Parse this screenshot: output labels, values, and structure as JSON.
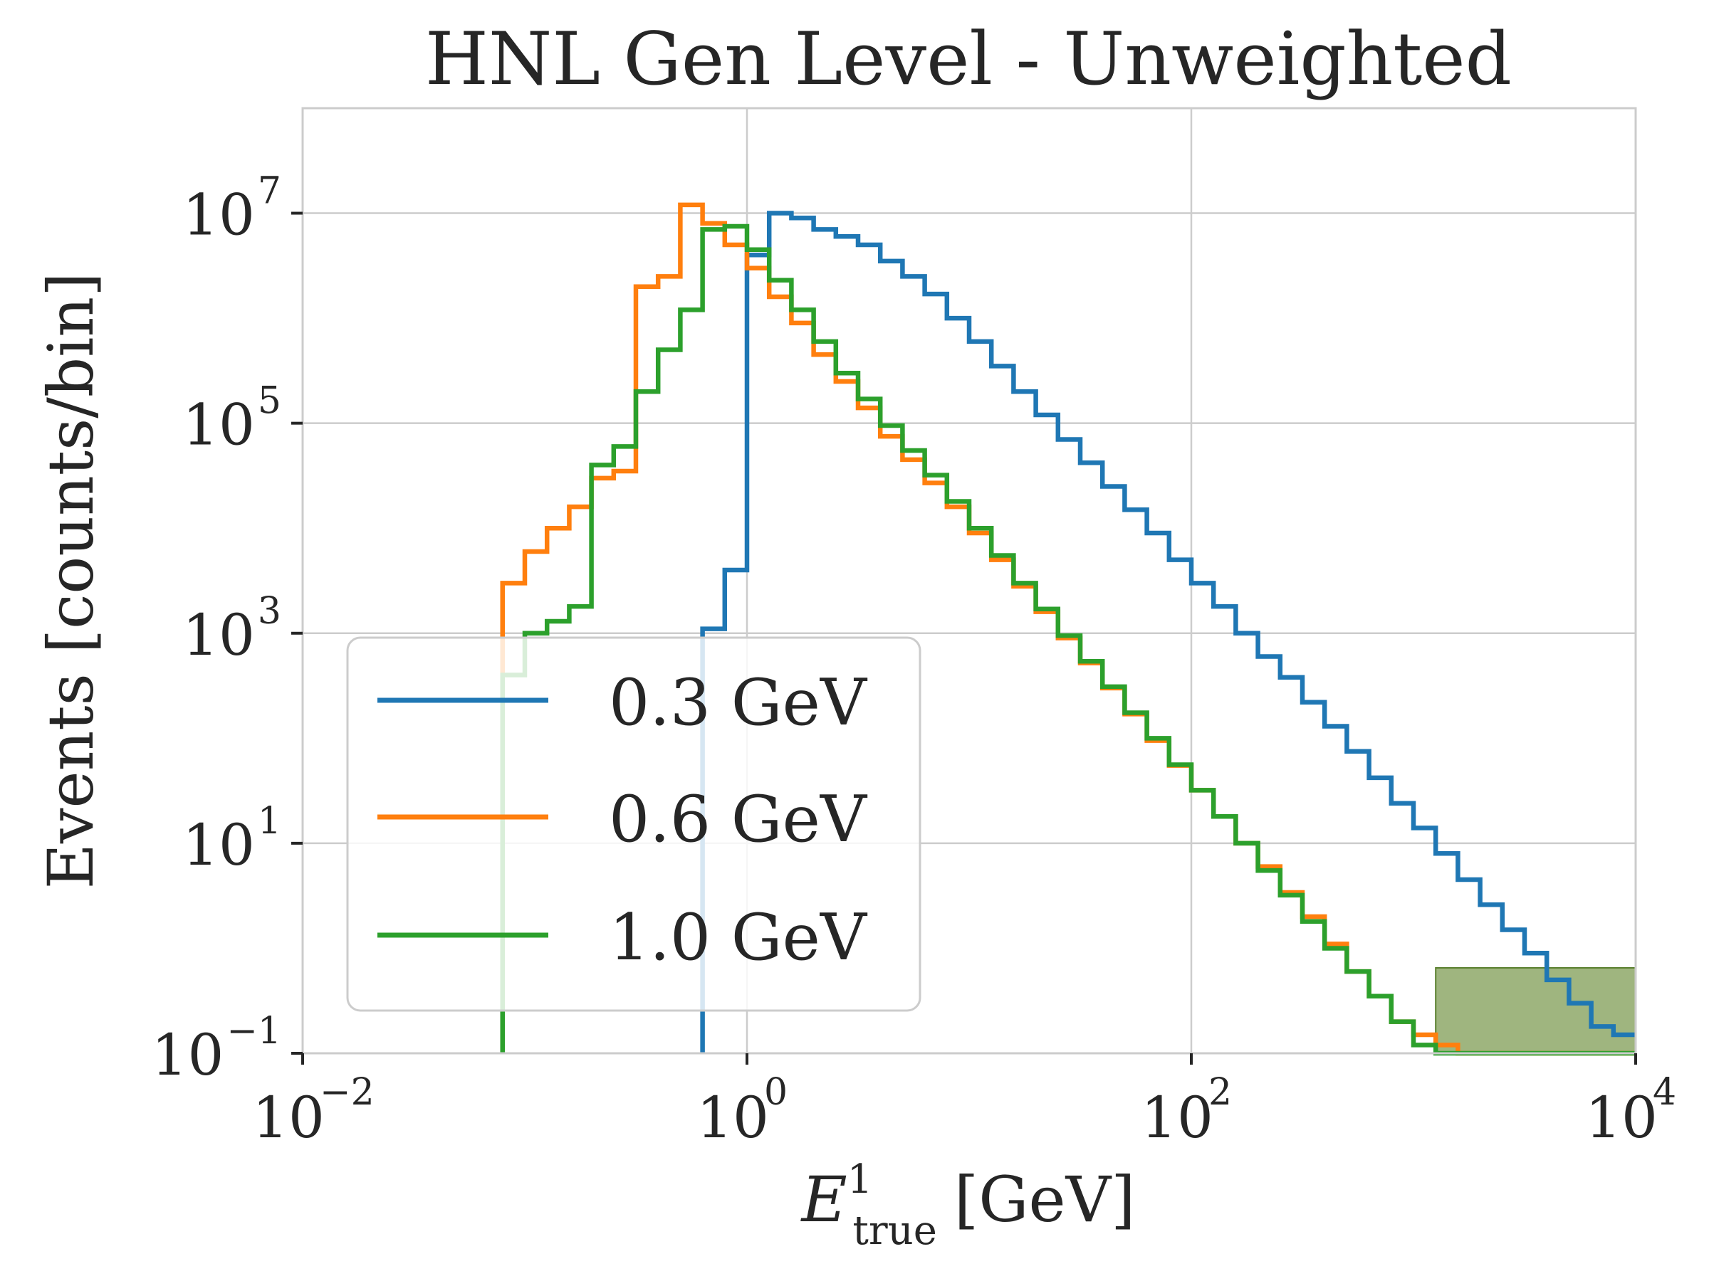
{
  "chart_data": {
    "type": "line",
    "title": "HNL Gen Level - Unweighted",
    "xlabel": "E",
    "xlabel_sup": "1",
    "xlabel_sub": "true",
    "xlabel_unit": "[GeV]",
    "ylabel": "Events [counts/bin]",
    "x_scale": "log",
    "y_scale": "log",
    "xlim": [
      0.01,
      10000
    ],
    "ylim": [
      0.1,
      100000000
    ],
    "x_ticks": [
      {
        "value": 0.01,
        "base": "10",
        "exp": "−2"
      },
      {
        "value": 1,
        "base": "10",
        "exp": "0"
      },
      {
        "value": 100,
        "base": "10",
        "exp": "2"
      },
      {
        "value": 10000,
        "base": "10",
        "exp": "4"
      }
    ],
    "y_ticks": [
      {
        "value": 0.1,
        "base": "10",
        "exp": "−1"
      },
      {
        "value": 10,
        "base": "10",
        "exp": "1"
      },
      {
        "value": 1000,
        "base": "10",
        "exp": "3"
      },
      {
        "value": 100000,
        "base": "10",
        "exp": "5"
      },
      {
        "value": 10000000,
        "base": "10",
        "exp": "7"
      }
    ],
    "grid": true,
    "legend_position": "lower-left",
    "bin_edges": [
      0.0794,
      0.1,
      0.1259,
      0.1585,
      0.1995,
      0.2512,
      0.3162,
      0.3981,
      0.5012,
      0.631,
      0.7943,
      1.0,
      1.2589,
      1.5849,
      1.9953,
      2.5119,
      3.1623,
      3.9811,
      5.0119,
      6.3096,
      7.9433,
      10.0,
      12.589,
      15.849,
      19.953,
      25.119,
      31.623,
      39.811,
      50.119,
      63.096,
      79.433,
      100.0,
      125.89,
      158.49,
      199.53,
      251.19,
      316.23,
      398.11,
      501.19,
      630.96,
      794.33,
      1000.0,
      1258.9,
      1584.9,
      1995.3,
      2511.9,
      3162.3,
      3981.1,
      5011.9,
      6309.6,
      7943.3,
      10000.0
    ],
    "series": [
      {
        "name": "0.3 GeV",
        "color": "#1f77b4",
        "start_bin": 9,
        "values": [
          1100,
          4000,
          4000000,
          10000000,
          9000000,
          7000000,
          6000000,
          5000000,
          3500000,
          2500000,
          1700000,
          1000000,
          600000,
          350000,
          200000,
          120000,
          70000,
          42000,
          25000,
          15000,
          9000,
          5000,
          3000,
          1800,
          1000,
          600,
          380,
          220,
          130,
          75,
          42,
          24,
          14,
          8,
          4.5,
          2.6,
          1.5,
          0.9,
          0.5,
          0.3,
          0.18,
          0.15
        ]
      },
      {
        "name": "0.6 GeV",
        "color": "#ff7f0e",
        "start_bin": 0,
        "values": [
          3000,
          6000,
          10000,
          16000,
          30000,
          35000,
          2000000,
          2500000,
          12000000,
          8000000,
          5000000,
          3000000,
          1600000,
          900000,
          450000,
          250000,
          140000,
          75000,
          45000,
          27000,
          16000,
          9000,
          5000,
          2800,
          1600,
          900,
          520,
          300,
          170,
          95,
          55,
          32,
          18,
          10,
          6,
          3.4,
          2,
          1.1,
          0.6,
          0.35,
          0.2,
          0.15,
          0.12,
          0.1,
          0.1,
          0.1,
          0.1,
          0.1,
          0.1,
          0.1,
          0.1
        ]
      },
      {
        "name": "1.0 GeV",
        "color": "#2ca02c",
        "start_bin": 0,
        "values": [
          400,
          1000,
          1300,
          1800,
          40000,
          60000,
          200000,
          500000,
          1200000,
          7000000,
          7500000,
          4500000,
          2300000,
          1200000,
          600000,
          300000,
          170000,
          95000,
          55000,
          32000,
          18000,
          10000,
          5500,
          3000,
          1700,
          950,
          540,
          310,
          175,
          100,
          56,
          32,
          18,
          10,
          5.5,
          3.2,
          1.8,
          1.0,
          0.6,
          0.35,
          0.2,
          0.12,
          0.1,
          0.1,
          0.1,
          0.1,
          0.1,
          0.1,
          0.1,
          0.1,
          0.1
        ]
      }
    ]
  }
}
